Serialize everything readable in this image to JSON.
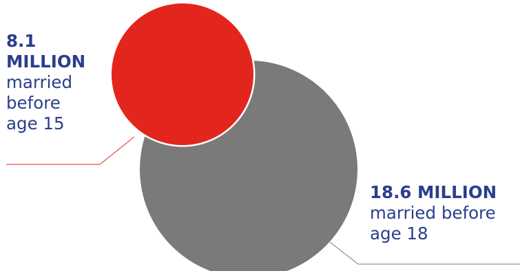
{
  "chart_data": {
    "type": "bubble",
    "series": [
      {
        "value_millions": 18.6,
        "label_value": "18.6 MILLION",
        "label_desc": "married before age 18",
        "color": "#7a7a7a",
        "outline": "#ffffff"
      },
      {
        "value_millions": 8.1,
        "label_value": "8.1 MILLION",
        "label_desc": "married before age 15",
        "color": "#e2261d",
        "outline": "#ffffff"
      }
    ],
    "label_color": "#2b3e8c",
    "leader_small_color": "#e2261d",
    "leader_large_color": "#7a7a7a"
  }
}
